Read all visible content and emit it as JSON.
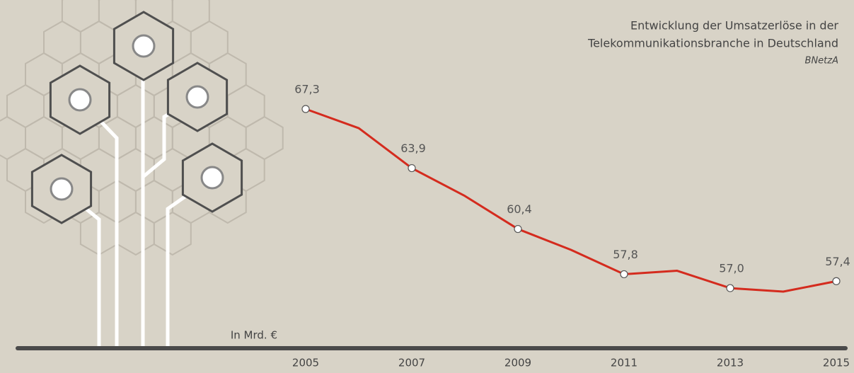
{
  "chart_data": {
    "type": "line",
    "title": [
      "Entwicklung der Umsatzerlöse in der",
      "Telekommunikationsbranche in Deutschland"
    ],
    "source": "BNetzA",
    "y_label": "In Mrd. €",
    "x": [
      2005,
      2006,
      2007,
      2008,
      2009,
      2010,
      2011,
      2012,
      2013,
      2014,
      2015
    ],
    "xticks": [
      2005,
      2007,
      2009,
      2011,
      2013,
      2015
    ],
    "series": [
      {
        "color": "#d42b1e",
        "values": [
          67.3,
          66.2,
          63.9,
          62.3,
          60.4,
          59.2,
          57.8,
          58.0,
          57.0,
          56.8,
          57.4
        ],
        "value_labels": [
          "67,3",
          null,
          "63,9",
          null,
          "60,4",
          null,
          "57,8",
          null,
          "57,0",
          null,
          "57,4"
        ]
      }
    ]
  }
}
